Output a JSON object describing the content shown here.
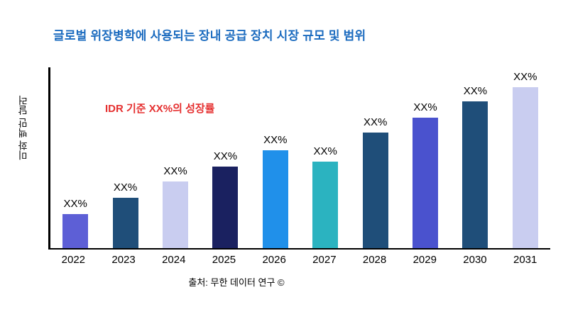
{
  "title": "글로벌 위장병학에 사용되는 장내 공급 장치 시장 규모 및 범위",
  "annotation": "IDR 기준 XX%의 성장률",
  "source": "출처: 무한 데이터 연구 ©",
  "colors": {
    "title": "#1B6BBF",
    "annotation": "#E53030",
    "axis": "#000000"
  },
  "chart_data": {
    "type": "bar",
    "title": "글로벌 위장병학에 사용되는 장내 공급 장치 시장 규모 및 범위",
    "xlabel": "",
    "ylabel": "미화 백만 달러",
    "ylim": [
      0,
      100
    ],
    "grid": false,
    "legend": "none",
    "categories": [
      "2022",
      "2023",
      "2024",
      "2025",
      "2026",
      "2027",
      "2028",
      "2029",
      "2030",
      "2031"
    ],
    "values": [
      19,
      28,
      37,
      45,
      54,
      48,
      64,
      72,
      81,
      89
    ],
    "bar_labels": [
      "XX%",
      "XX%",
      "XX%",
      "XX%",
      "XX%",
      "XX%",
      "XX%",
      "XX%",
      "XX%",
      "XX%"
    ],
    "bar_colors": [
      "#5D5FD6",
      "#1F4E79",
      "#C9CDF0",
      "#1A2160",
      "#2090EA",
      "#2BB3C0",
      "#1F4E79",
      "#4A52CE",
      "#1F4E79",
      "#C9CDF0"
    ]
  }
}
